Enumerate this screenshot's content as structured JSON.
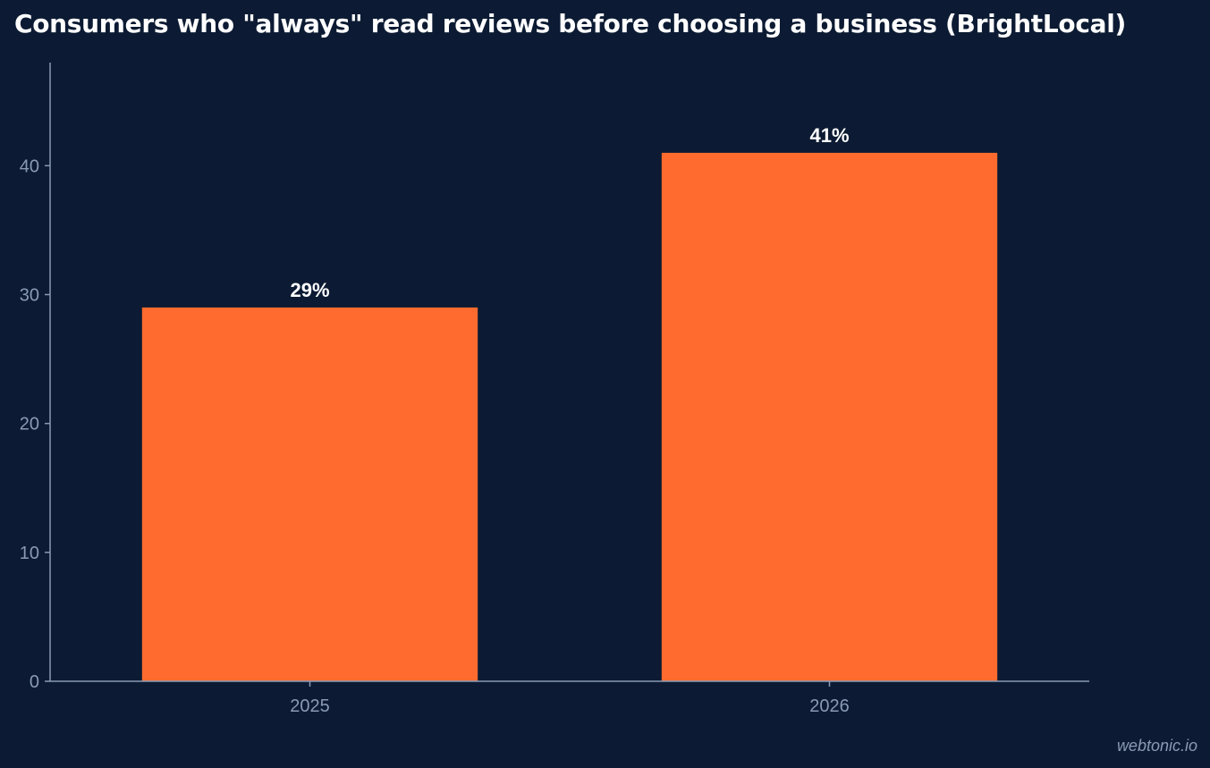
{
  "chart_data": {
    "type": "bar",
    "title": "Consumers who \"always\" read reviews before choosing a business (BrightLocal)",
    "categories": [
      "2025",
      "2026"
    ],
    "values": [
      29,
      41
    ],
    "value_labels": [
      "29%",
      "41%"
    ],
    "xlabel": "",
    "ylabel": "",
    "ylim": [
      0,
      48
    ],
    "yticks": [
      0,
      10,
      20,
      30,
      40
    ],
    "grid": false,
    "colors": {
      "bar": "#ff6b2f",
      "background": "#0c1b33",
      "axis": "#8a9ab5",
      "tick_text": "#8a9ab5",
      "label_text": "#ffffff"
    }
  },
  "watermark": "webtonic.io"
}
